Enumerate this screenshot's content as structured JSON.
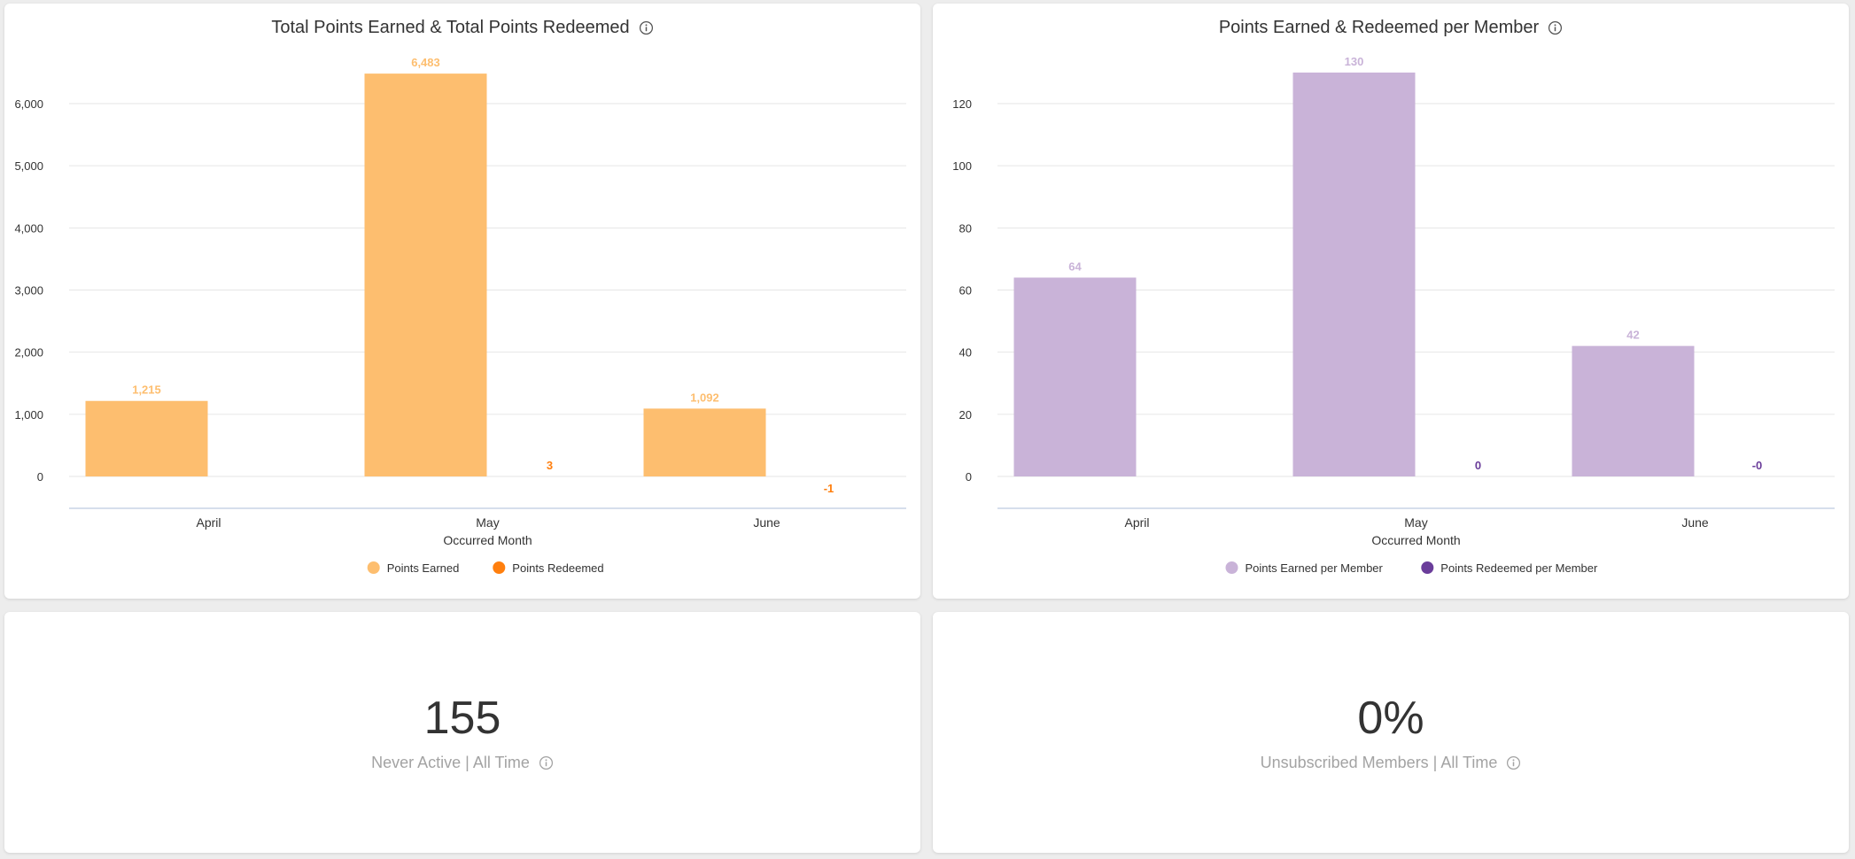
{
  "colors": {
    "earned_orange": "#fdbe6f",
    "redeemed_orange": "#ff7f0e",
    "earned_purple": "#c9b3d8",
    "redeemed_purple": "#6a3d9a"
  },
  "icons": {
    "info": "info-icon"
  },
  "chart_data": [
    {
      "type": "bar",
      "title": "Total Points Earned & Total Points Redeemed",
      "xlabel": "Occurred Month",
      "ylabel": "",
      "categories": [
        "April",
        "May",
        "June"
      ],
      "ylim": [
        -500,
        6500
      ],
      "yticks": [
        0,
        1000,
        2000,
        3000,
        4000,
        5000,
        6000
      ],
      "ytick_labels": [
        "0",
        "1,000",
        "2,000",
        "3,000",
        "4,000",
        "5,000",
        "6,000"
      ],
      "series": [
        {
          "name": "Points Earned",
          "values": [
            1215,
            6483,
            1092
          ],
          "labels": [
            "1,215",
            "6,483",
            "1,092"
          ],
          "color": "#fdbe6f"
        },
        {
          "name": "Points Redeemed",
          "values": [
            null,
            3,
            -1
          ],
          "labels": [
            "",
            "3",
            "-1"
          ],
          "color": "#ff7f0e"
        }
      ],
      "legend": "bottom",
      "grid": true
    },
    {
      "type": "bar",
      "title": "Points Earned & Redeemed per Member",
      "xlabel": "Occurred Month",
      "ylabel": "",
      "categories": [
        "April",
        "May",
        "June"
      ],
      "ylim": [
        -10,
        130
      ],
      "yticks": [
        0,
        20,
        40,
        60,
        80,
        100,
        120
      ],
      "ytick_labels": [
        "0",
        "20",
        "40",
        "60",
        "80",
        "100",
        "120"
      ],
      "series": [
        {
          "name": "Points Earned per Member",
          "values": [
            64,
            130,
            42
          ],
          "labels": [
            "64",
            "130",
            "42"
          ],
          "color": "#c9b3d8"
        },
        {
          "name": "Points Redeemed per Member",
          "values": [
            null,
            0,
            0
          ],
          "labels": [
            "",
            "0",
            "-0"
          ],
          "color": "#6a3d9a"
        }
      ],
      "legend": "bottom",
      "grid": true
    }
  ],
  "kpis": [
    {
      "value": "155",
      "label": "Never Active | All Time"
    },
    {
      "value": "0%",
      "label": "Unsubscribed Members | All Time"
    }
  ]
}
